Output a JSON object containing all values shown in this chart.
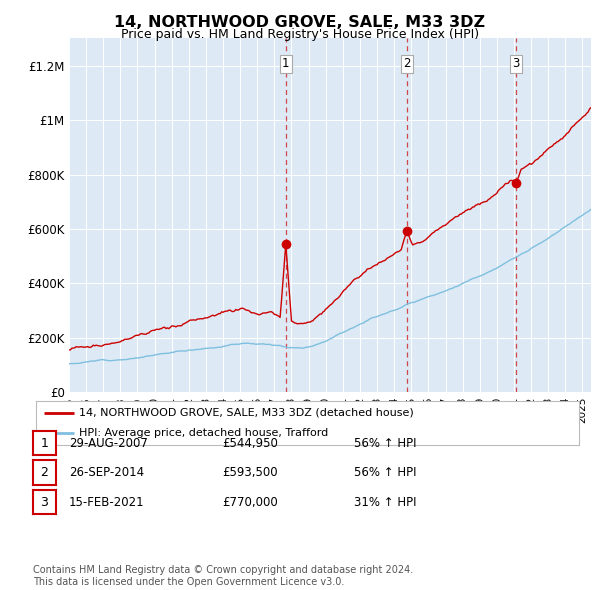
{
  "title": "14, NORTHWOOD GROVE, SALE, M33 3DZ",
  "subtitle": "Price paid vs. HM Land Registry's House Price Index (HPI)",
  "hpi_color": "#7fbfdf",
  "price_color": "#cc0000",
  "background_color": "#ffffff",
  "plot_bg_color": "#ddeaf5",
  "ylim": [
    0,
    1300000
  ],
  "yticks": [
    0,
    200000,
    400000,
    600000,
    800000,
    1000000,
    1200000
  ],
  "ylabel_texts": [
    "£0",
    "£200K",
    "£400K",
    "£600K",
    "£800K",
    "£1M",
    "£1.2M"
  ],
  "sale_year_floats": [
    2007.667,
    2014.75,
    2021.125
  ],
  "sale_prices": [
    544950,
    593500,
    770000
  ],
  "sale_labels": [
    "1",
    "2",
    "3"
  ],
  "legend_line1": "14, NORTHWOOD GROVE, SALE, M33 3DZ (detached house)",
  "legend_line2": "HPI: Average price, detached house, Trafford",
  "table_rows": [
    [
      "1",
      "29-AUG-2007",
      "£544,950",
      "56% ↑ HPI"
    ],
    [
      "2",
      "26-SEP-2014",
      "£593,500",
      "56% ↑ HPI"
    ],
    [
      "3",
      "15-FEB-2021",
      "£770,000",
      "31% ↑ HPI"
    ]
  ],
  "footnote": "Contains HM Land Registry data © Crown copyright and database right 2024.\nThis data is licensed under the Open Government Licence v3.0.",
  "dashed_line_color": "#cc0000",
  "dashed_line_alpha": 0.7,
  "xmin": 1995,
  "xmax": 2025.5
}
